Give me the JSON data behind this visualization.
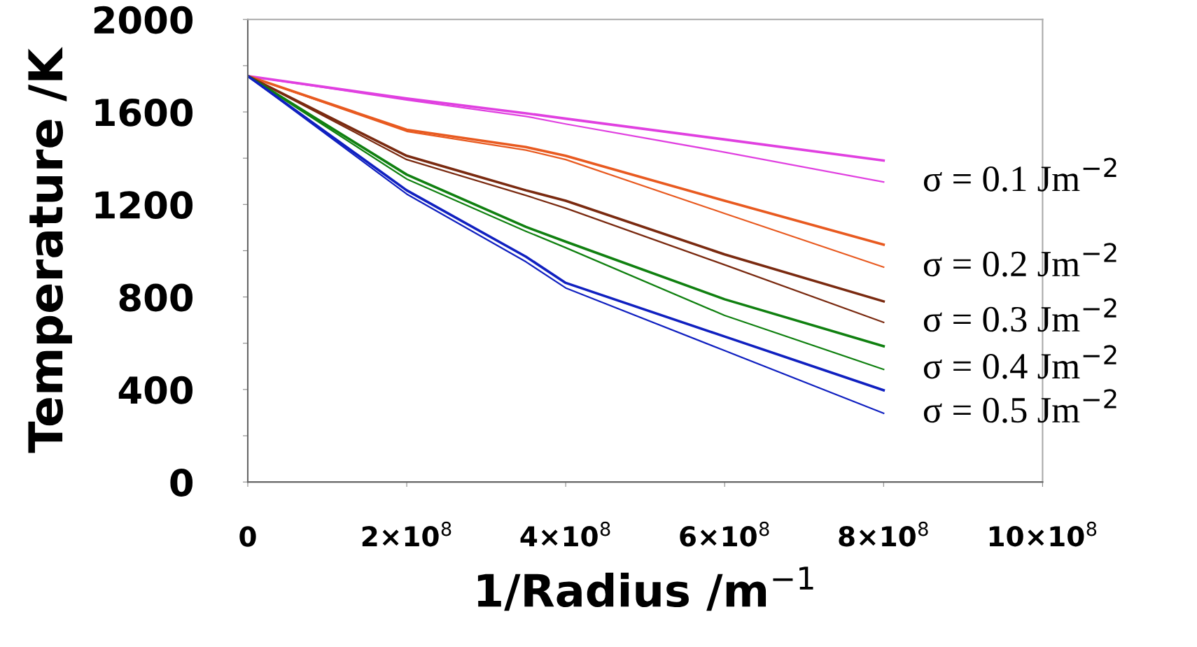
{
  "chart_data": {
    "type": "line",
    "xlabel": "1/Radius /m$^{−1}$",
    "ylabel": "Temperature /K",
    "x": [
      0,
      200000000,
      350000000,
      400000000,
      600000000,
      800000000
    ],
    "xlim": [
      0,
      1000000000
    ],
    "xticks": [
      {
        "value": 0,
        "label": "0"
      },
      {
        "value": 200000000,
        "label": "2×10$^{8}$"
      },
      {
        "value": 400000000,
        "label": "4×10$^{8}$"
      },
      {
        "value": 600000000,
        "label": "6×10$^{8}$"
      },
      {
        "value": 800000000,
        "label": "8×10$^{8}$"
      },
      {
        "value": 1000000000,
        "label": "10×10$^{8}$"
      }
    ],
    "ylim": [
      0,
      2000
    ],
    "yticks": [
      0,
      {
        "value": 200,
        "label": null
      },
      400,
      {
        "value": 600,
        "label": null
      },
      800,
      {
        "value": 1000,
        "label": null
      },
      1200,
      {
        "value": 1400,
        "label": null
      },
      1600,
      {
        "value": 1800,
        "label": null
      },
      2000
    ],
    "grid": false,
    "marker": "none",
    "line_style": "solid",
    "series": [
      {
        "color": "#e040e0",
        "values": [
          1755,
          1658,
          1594,
          1571,
          1481,
          1390
        ]
      },
      {
        "color": "#e040e0",
        "values": [
          1755,
          1652,
          1581,
          1548,
          1426,
          1297
        ]
      },
      {
        "color": "#e85a20",
        "values": [
          1755,
          1523,
          1448,
          1410,
          1216,
          1026
        ]
      },
      {
        "color": "#e85a20",
        "values": [
          1755,
          1516,
          1435,
          1394,
          1161,
          929
        ]
      },
      {
        "color": "#7a2a10",
        "values": [
          1755,
          1410,
          1261,
          1216,
          984,
          781
        ]
      },
      {
        "color": "#7a2a10",
        "values": [
          1755,
          1394,
          1239,
          1184,
          939,
          690
        ]
      },
      {
        "color": "#108010",
        "values": [
          1755,
          1329,
          1103,
          1039,
          790,
          587
        ]
      },
      {
        "color": "#108010",
        "values": [
          1755,
          1310,
          1084,
          1013,
          720,
          487
        ]
      },
      {
        "color": "#1020c0",
        "values": [
          1755,
          1261,
          974,
          861,
          629,
          397
        ]
      },
      {
        "color": "#1020c0",
        "values": [
          1755,
          1245,
          952,
          839,
          568,
          297
        ]
      }
    ],
    "annotations": [
      "σ = 0.1 Jm$^{−2}$",
      "σ = 0.2 Jm$^{−2}$",
      "σ = 0.3 Jm$^{−2}$",
      "σ = 0.4 Jm$^{−2}$",
      "σ = 0.5 Jm$^{−2}$"
    ]
  }
}
